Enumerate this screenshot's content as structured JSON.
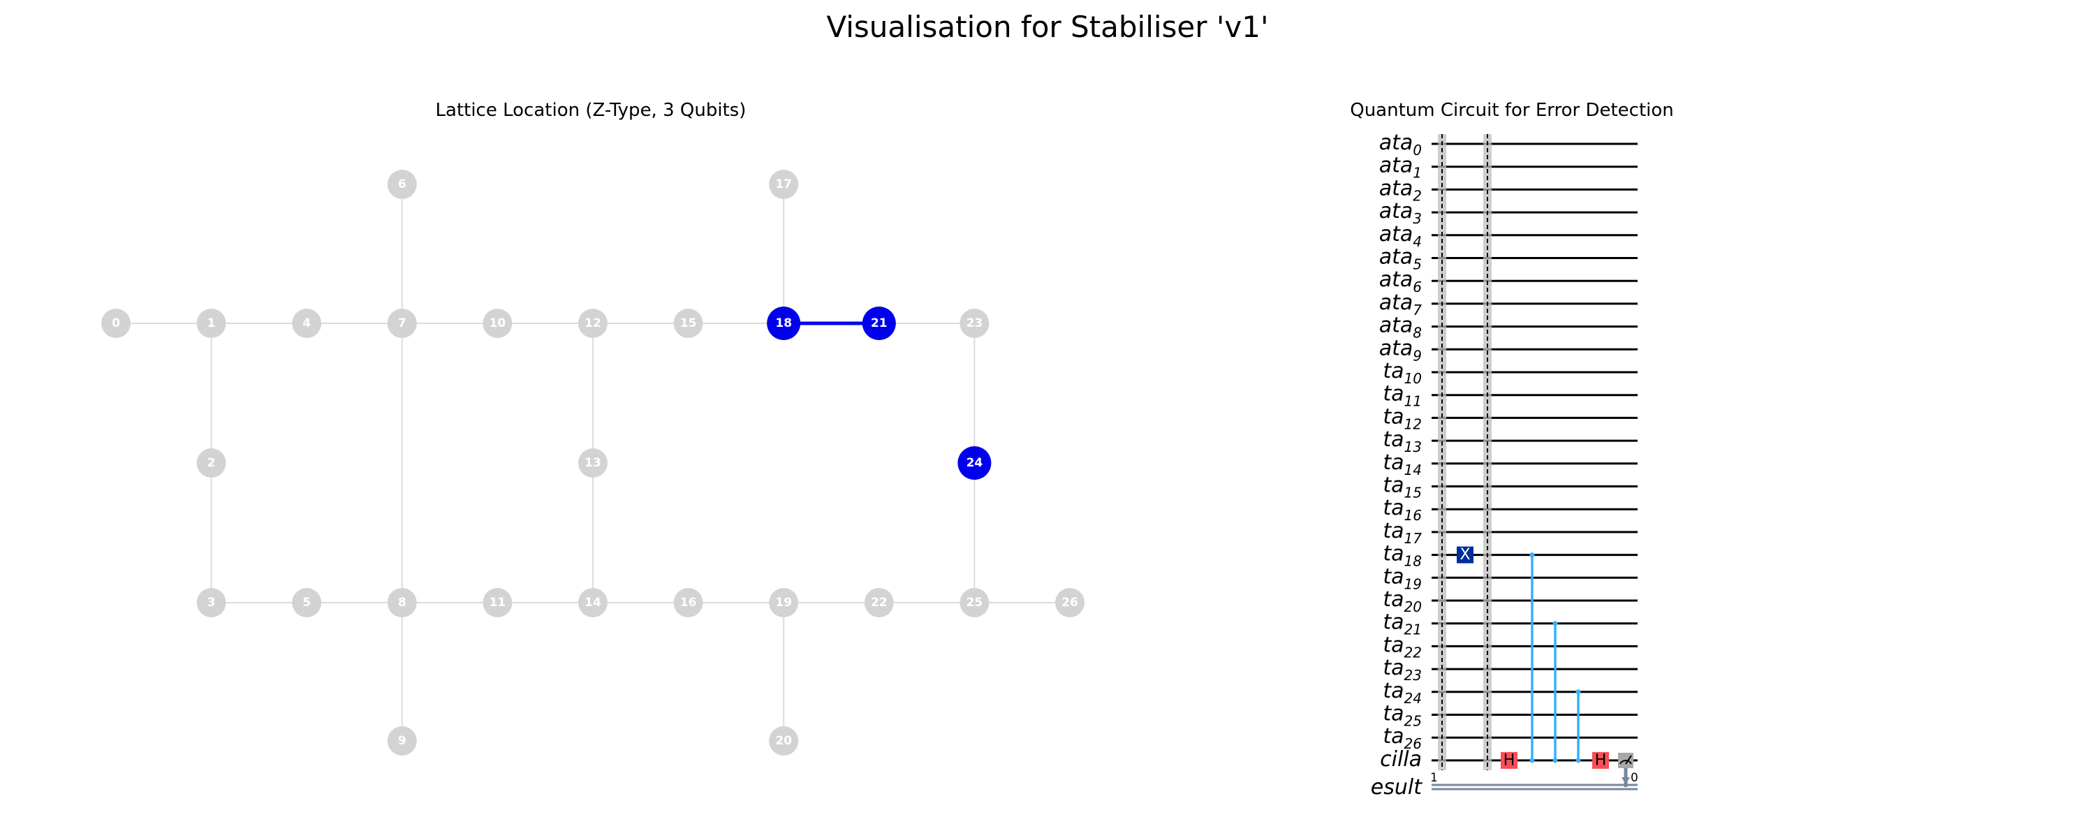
{
  "title": "Visualisation for Stabiliser 'v1'",
  "lattice": {
    "title": "Lattice Location (Z-Type, 3 Qubits)",
    "inactive_color": "#d3d3d3",
    "active_color": "#0000ee",
    "nodes": [
      {
        "id": "0",
        "col": 0,
        "row": 1
      },
      {
        "id": "1",
        "col": 1,
        "row": 1
      },
      {
        "id": "2",
        "col": 1,
        "row": 2
      },
      {
        "id": "3",
        "col": 1,
        "row": 3
      },
      {
        "id": "4",
        "col": 2,
        "row": 1
      },
      {
        "id": "5",
        "col": 2,
        "row": 3
      },
      {
        "id": "6",
        "col": 3,
        "row": 0
      },
      {
        "id": "7",
        "col": 3,
        "row": 1
      },
      {
        "id": "8",
        "col": 3,
        "row": 3
      },
      {
        "id": "9",
        "col": 3,
        "row": 4
      },
      {
        "id": "10",
        "col": 4,
        "row": 1
      },
      {
        "id": "11",
        "col": 4,
        "row": 3
      },
      {
        "id": "12",
        "col": 5,
        "row": 1
      },
      {
        "id": "13",
        "col": 5,
        "row": 2
      },
      {
        "id": "14",
        "col": 5,
        "row": 3
      },
      {
        "id": "15",
        "col": 6,
        "row": 1
      },
      {
        "id": "16",
        "col": 6,
        "row": 3
      },
      {
        "id": "17",
        "col": 7,
        "row": 0
      },
      {
        "id": "18",
        "col": 7,
        "row": 1,
        "active": true
      },
      {
        "id": "19",
        "col": 7,
        "row": 3
      },
      {
        "id": "20",
        "col": 7,
        "row": 4
      },
      {
        "id": "21",
        "col": 8,
        "row": 1,
        "active": true
      },
      {
        "id": "22",
        "col": 8,
        "row": 3
      },
      {
        "id": "23",
        "col": 9,
        "row": 1
      },
      {
        "id": "24",
        "col": 9,
        "row": 2,
        "active": true
      },
      {
        "id": "25",
        "col": 9,
        "row": 3
      },
      {
        "id": "26",
        "col": 10,
        "row": 3
      }
    ],
    "edges": [
      [
        "0",
        "1"
      ],
      [
        "1",
        "4"
      ],
      [
        "4",
        "7"
      ],
      [
        "7",
        "10"
      ],
      [
        "10",
        "12"
      ],
      [
        "12",
        "15"
      ],
      [
        "15",
        "18"
      ],
      [
        "18",
        "21",
        "active"
      ],
      [
        "21",
        "23"
      ],
      [
        "1",
        "2"
      ],
      [
        "2",
        "3"
      ],
      [
        "6",
        "7"
      ],
      [
        "7",
        "8"
      ],
      [
        "8",
        "9"
      ],
      [
        "12",
        "13"
      ],
      [
        "13",
        "14"
      ],
      [
        "17",
        "18"
      ],
      [
        "19",
        "20"
      ],
      [
        "23",
        "24"
      ],
      [
        "24",
        "25"
      ],
      [
        "3",
        "5"
      ],
      [
        "5",
        "8"
      ],
      [
        "8",
        "11"
      ],
      [
        "11",
        "14"
      ],
      [
        "14",
        "16"
      ],
      [
        "16",
        "19"
      ],
      [
        "19",
        "22"
      ],
      [
        "22",
        "25"
      ],
      [
        "25",
        "26"
      ]
    ]
  },
  "circuit": {
    "title": "Quantum Circuit for Error Detection",
    "wires": [
      {
        "base": "ata",
        "sub": "0"
      },
      {
        "base": "ata",
        "sub": "1"
      },
      {
        "base": "ata",
        "sub": "2"
      },
      {
        "base": "ata",
        "sub": "3"
      },
      {
        "base": "ata",
        "sub": "4"
      },
      {
        "base": "ata",
        "sub": "5"
      },
      {
        "base": "ata",
        "sub": "6"
      },
      {
        "base": "ata",
        "sub": "7"
      },
      {
        "base": "ata",
        "sub": "8"
      },
      {
        "base": "ata",
        "sub": "9"
      },
      {
        "base": "ta",
        "sub": "10"
      },
      {
        "base": "ta",
        "sub": "11"
      },
      {
        "base": "ta",
        "sub": "12"
      },
      {
        "base": "ta",
        "sub": "13"
      },
      {
        "base": "ta",
        "sub": "14"
      },
      {
        "base": "ta",
        "sub": "15"
      },
      {
        "base": "ta",
        "sub": "16"
      },
      {
        "base": "ta",
        "sub": "17"
      },
      {
        "base": "ta",
        "sub": "18"
      },
      {
        "base": "ta",
        "sub": "19"
      },
      {
        "base": "ta",
        "sub": "20"
      },
      {
        "base": "ta",
        "sub": "21"
      },
      {
        "base": "ta",
        "sub": "22"
      },
      {
        "base": "ta",
        "sub": "23"
      },
      {
        "base": "ta",
        "sub": "24"
      },
      {
        "base": "ta",
        "sub": "25"
      },
      {
        "base": "ta",
        "sub": "26"
      },
      {
        "base": "cilla",
        "sub": ""
      }
    ],
    "classical_wire": {
      "label": "esult",
      "left_num": "1",
      "right_num": "0"
    },
    "x_gate": {
      "wire": 18,
      "label": "X",
      "color": "#002d9c"
    },
    "h_gate_label": "H",
    "h_gate_color": "#fa4d56",
    "cz_color": "#33b1ff",
    "cz_targets": [
      18,
      21,
      24
    ],
    "barrier_color": "#bdbdbd",
    "measure_color": "#a8a8a8",
    "classical_color": "#778899"
  }
}
